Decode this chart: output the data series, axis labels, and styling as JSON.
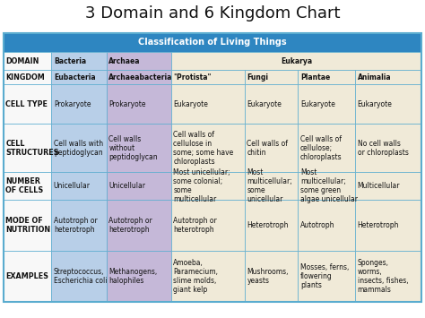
{
  "title": "3 Domain and 6 Kingdom Chart",
  "header": "Classification of Living Things",
  "header_bg": "#2e86c1",
  "header_text_color": "#ffffff",
  "bg_white": "#f8f8f8",
  "bg_blue": "#b8cfe8",
  "bg_purple": "#c5b8d8",
  "bg_cream": "#f0ead8",
  "border_color": "#5aaccf",
  "title_fontsize": 13,
  "table_rows": [
    {
      "label": "DOMAIN",
      "cells": [
        {
          "text": "Bacteria",
          "bold": true,
          "colspan": 1
        },
        {
          "text": "Archaea",
          "bold": true,
          "colspan": 1
        },
        {
          "text": "Eukarya",
          "bold": true,
          "colspan": 4
        }
      ]
    },
    {
      "label": "KINGDOM",
      "cells": [
        {
          "text": "Eubacteria",
          "bold": true,
          "colspan": 1
        },
        {
          "text": "Archaeabacteria",
          "bold": true,
          "colspan": 1
        },
        {
          "text": "\"Protista\"",
          "bold": true,
          "colspan": 1
        },
        {
          "text": "Fungi",
          "bold": true,
          "colspan": 1
        },
        {
          "text": "Plantae",
          "bold": true,
          "colspan": 1
        },
        {
          "text": "Animalia",
          "bold": true,
          "colspan": 1
        }
      ]
    },
    {
      "label": "CELL TYPE",
      "cells": [
        {
          "text": "Prokaryote",
          "bold": false,
          "colspan": 1
        },
        {
          "text": "Prokaryote",
          "bold": false,
          "colspan": 1
        },
        {
          "text": "Eukaryote",
          "bold": false,
          "colspan": 1
        },
        {
          "text": "Eukaryote",
          "bold": false,
          "colspan": 1
        },
        {
          "text": "Eukaryote",
          "bold": false,
          "colspan": 1
        },
        {
          "text": "Eukaryote",
          "bold": false,
          "colspan": 1
        }
      ]
    },
    {
      "label": "CELL\nSTRUCTURES",
      "cells": [
        {
          "text": "Cell walls with\npeptidoglycan",
          "bold": false,
          "colspan": 1
        },
        {
          "text": "Cell walls\nwithout\npeptidoglycan",
          "bold": false,
          "colspan": 1
        },
        {
          "text": "Cell walls of\ncellulose in\nsome; some have\nchloroplasts",
          "bold": false,
          "colspan": 1
        },
        {
          "text": "Cell walls of\nchitin",
          "bold": false,
          "colspan": 1
        },
        {
          "text": "Cell walls of\ncellulose;\nchloroplasts",
          "bold": false,
          "colspan": 1
        },
        {
          "text": "No cell walls\nor chloroplasts",
          "bold": false,
          "colspan": 1
        }
      ]
    },
    {
      "label": "NUMBER\nOF CELLS",
      "cells": [
        {
          "text": "Unicellular",
          "bold": false,
          "colspan": 1
        },
        {
          "text": "Unicellular",
          "bold": false,
          "colspan": 1
        },
        {
          "text": "Most unicellular;\nsome colonial;\nsome\nmulticellular",
          "bold": false,
          "colspan": 1
        },
        {
          "text": "Most\nmulticellular;\nsome\nunicellular",
          "bold": false,
          "colspan": 1
        },
        {
          "text": "Most\nmulticellular;\nsome green\nalgae unicellular",
          "bold": false,
          "colspan": 1
        },
        {
          "text": "Multicellular",
          "bold": false,
          "colspan": 1
        }
      ]
    },
    {
      "label": "MODE OF\nNUTRITION",
      "cells": [
        {
          "text": "Autotroph or\nheterotroph",
          "bold": false,
          "colspan": 1
        },
        {
          "text": "Autotroph or\nheterotroph",
          "bold": false,
          "colspan": 1
        },
        {
          "text": "Autotroph or\nheterotroph",
          "bold": false,
          "colspan": 1
        },
        {
          "text": "Heterotroph",
          "bold": false,
          "colspan": 1
        },
        {
          "text": "Autotroph",
          "bold": false,
          "colspan": 1
        },
        {
          "text": "Heterotroph",
          "bold": false,
          "colspan": 1
        }
      ]
    },
    {
      "label": "EXAMPLES",
      "cells": [
        {
          "text": "Streptococcus,\nEscherichia coli",
          "bold": false,
          "colspan": 1
        },
        {
          "text": "Methanogens,\nhalophiles",
          "bold": false,
          "colspan": 1
        },
        {
          "text": "Amoeba,\nParamecium,\nslime molds,\ngiant kelp",
          "bold": false,
          "colspan": 1
        },
        {
          "text": "Mushrooms,\nyeasts",
          "bold": false,
          "colspan": 1
        },
        {
          "text": "Mosses, ferns,\nflowering\nplants",
          "bold": false,
          "colspan": 1
        },
        {
          "text": "Sponges,\nworms,\ninsects, fishes,\nmammals",
          "bold": false,
          "colspan": 1
        }
      ]
    }
  ],
  "col_widths_rel": [
    52,
    60,
    70,
    80,
    58,
    62,
    72
  ],
  "row_heights_rel": [
    20,
    20,
    15,
    43,
    52,
    30,
    55,
    55
  ]
}
